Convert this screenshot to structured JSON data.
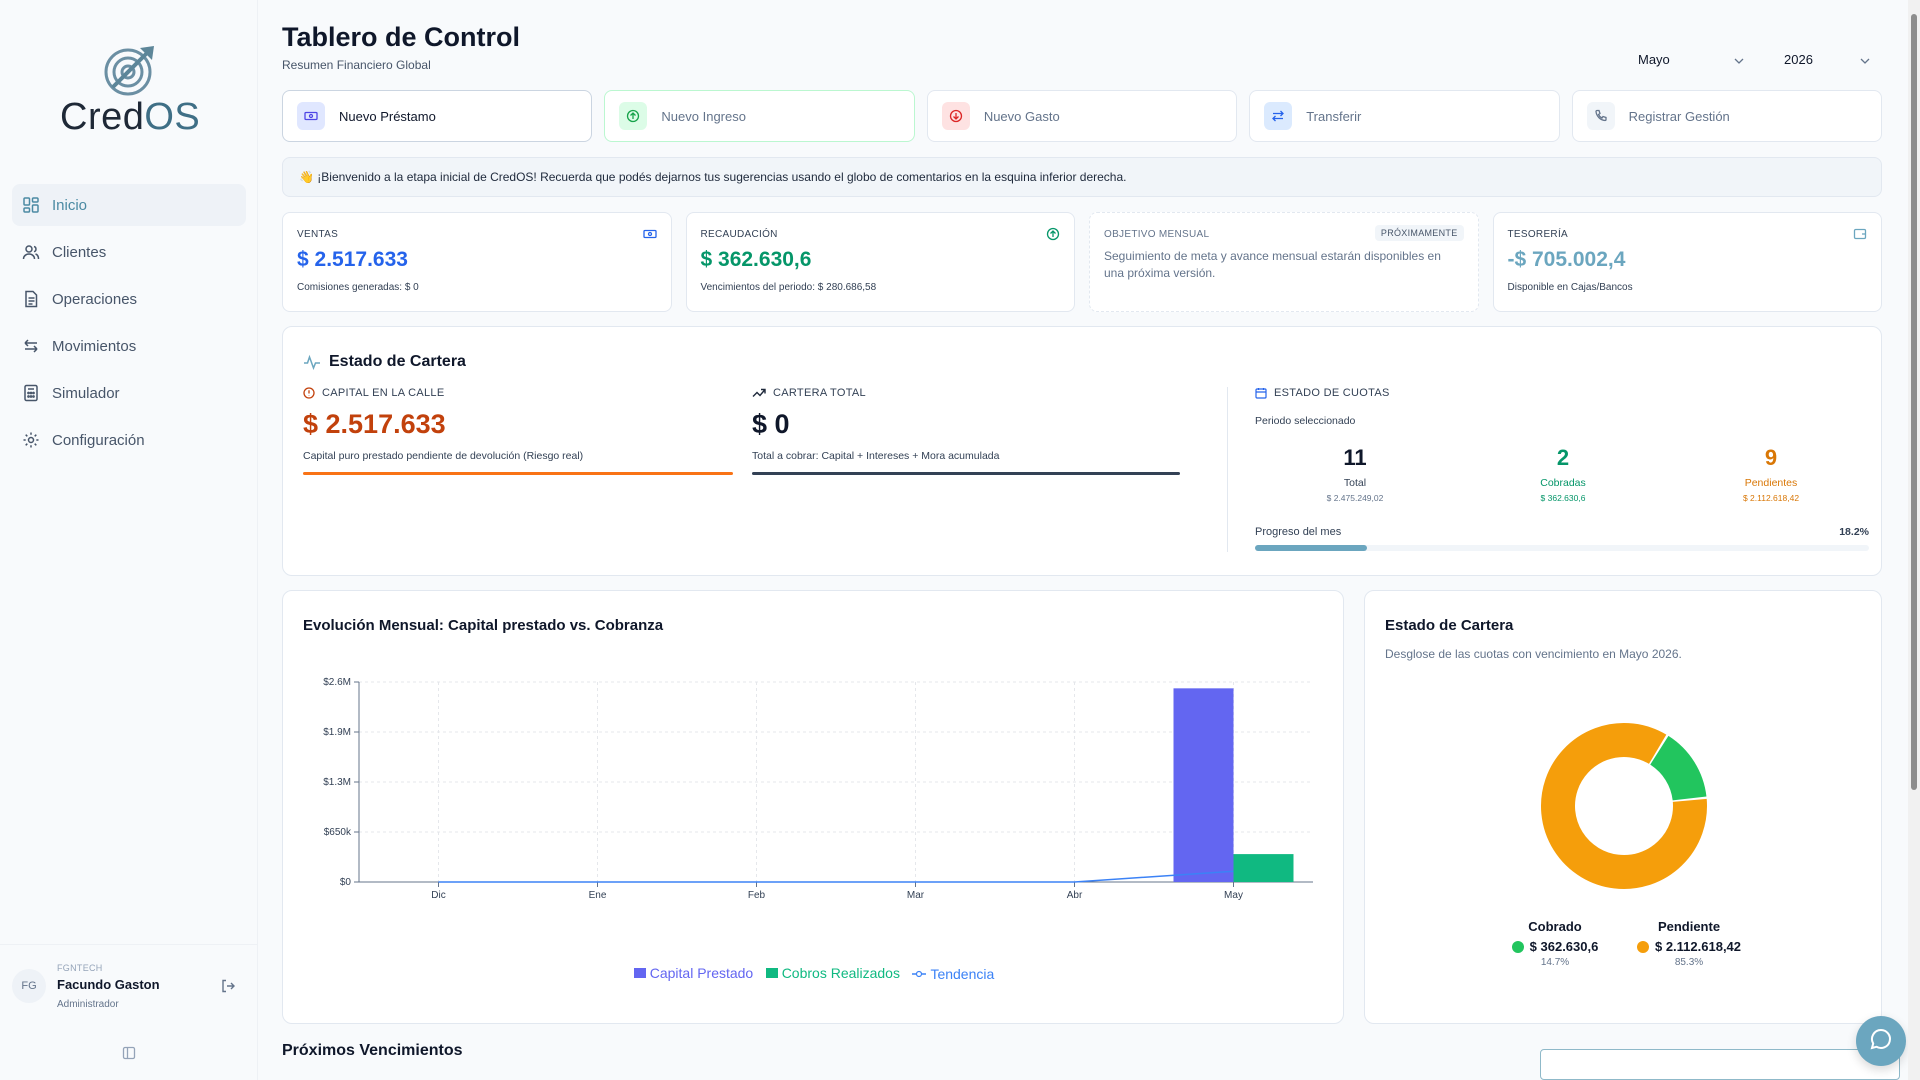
{
  "brand": {
    "name_part1": "Cred",
    "name_part2": "OS"
  },
  "sidebar": {
    "items": [
      {
        "label": "Inicio",
        "icon": "dashboard-icon"
      },
      {
        "label": "Clientes",
        "icon": "users-icon"
      },
      {
        "label": "Operaciones",
        "icon": "document-icon"
      },
      {
        "label": "Movimientos",
        "icon": "arrows-icon"
      },
      {
        "label": "Simulador",
        "icon": "calculator-icon"
      },
      {
        "label": "Configuración",
        "icon": "gear-icon"
      }
    ],
    "user": {
      "initials": "FG",
      "org": "FGNTECH",
      "name": "Facundo Gaston",
      "role": "Administrador"
    }
  },
  "header": {
    "title": "Tablero de Control",
    "subtitle": "Resumen Financiero Global",
    "month": "Mayo",
    "year": "2026"
  },
  "actions": [
    {
      "label": "Nuevo Préstamo"
    },
    {
      "label": "Nuevo Ingreso"
    },
    {
      "label": "Nuevo Gasto"
    },
    {
      "label": "Transferir"
    },
    {
      "label": "Registrar Gestión"
    }
  ],
  "banner": {
    "emoji": "👋",
    "text": "¡Bienvenido a la etapa inicial de CredOS! Recuerda que podés dejarnos tus sugerencias usando el globo de comentarios en la esquina inferior derecha."
  },
  "kpis": {
    "ventas": {
      "label": "VENTAS",
      "value": "$ 2.517.633",
      "sub": "Comisiones generadas: $ 0"
    },
    "recaudacion": {
      "label": "RECAUDACIÓN",
      "value": "$ 362.630,6",
      "sub": "Vencimientos del periodo: $ 280.686,58"
    },
    "objetivo": {
      "label": "OBJETIVO MENSUAL",
      "badge": "PRÓXIMAMENTE",
      "desc": "Seguimiento de meta y avance mensual estarán disponibles en una próxima versión."
    },
    "tesoreria": {
      "label": "TESORERÍA",
      "value": "-$ 705.002,4",
      "sub": "Disponible en Cajas/Bancos"
    }
  },
  "portfolio": {
    "title": "Estado de Cartera",
    "capital": {
      "label": "CAPITAL EN LA CALLE",
      "value": "$ 2.517.633",
      "desc": "Capital puro prestado pendiente de devolución (Riesgo real)"
    },
    "cartera": {
      "label": "CARTERA TOTAL",
      "value": "$ 0",
      "desc": "Total a cobrar: Capital + Intereses + Mora acumulada"
    },
    "cuotas": {
      "label": "ESTADO DE CUOTAS",
      "period": "Periodo seleccionado",
      "total": {
        "num": "11",
        "label": "Total",
        "amount": "$ 2.475.249,02"
      },
      "cobradas": {
        "num": "2",
        "label": "Cobradas",
        "amount": "$ 362.630,6"
      },
      "pendientes": {
        "num": "9",
        "label": "Pendientes",
        "amount": "$ 2.112.618,42"
      },
      "progress_label": "Progreso del mes",
      "progress_text": "18.2%",
      "progress": 0.182
    }
  },
  "chart_data": [
    {
      "type": "bar",
      "title": "Evolución Mensual: Capital prestado vs. Cobranza",
      "categories": [
        "Dic",
        "Ene",
        "Feb",
        "Mar",
        "Abr",
        "May"
      ],
      "y_ticks": [
        "$0",
        "$650k",
        "$1.3M",
        "$1.9M",
        "$2.6M"
      ],
      "ylim": [
        0,
        2600000
      ],
      "grid": true,
      "legend": "bottom",
      "series": [
        {
          "name": "Capital Prestado",
          "values": [
            0,
            0,
            0,
            0,
            0,
            2517633
          ],
          "color": "#6366f1",
          "kind": "bar"
        },
        {
          "name": "Cobros Realizados",
          "values": [
            0,
            0,
            0,
            0,
            0,
            362630.6
          ],
          "color": "#10b981",
          "kind": "bar"
        },
        {
          "name": "Tendencia",
          "values": [
            0,
            0,
            0,
            0,
            0,
            140000
          ],
          "color": "#3b82f6",
          "kind": "line"
        }
      ]
    },
    {
      "type": "pie",
      "title": "Estado de Cartera",
      "subtitle": "Desglose de las cuotas con vencimiento en Mayo 2026.",
      "slices": [
        {
          "name": "Cobrado",
          "value": 362630.6,
          "display": "$ 362.630,6",
          "pct": "14.7%",
          "color": "#22c55e"
        },
        {
          "name": "Pendiente",
          "value": 2112618.42,
          "display": "$ 2.112.618,42",
          "pct": "85.3%",
          "color": "#f59e0b"
        }
      ]
    }
  ],
  "next": {
    "title": "Próximos Vencimientos"
  }
}
